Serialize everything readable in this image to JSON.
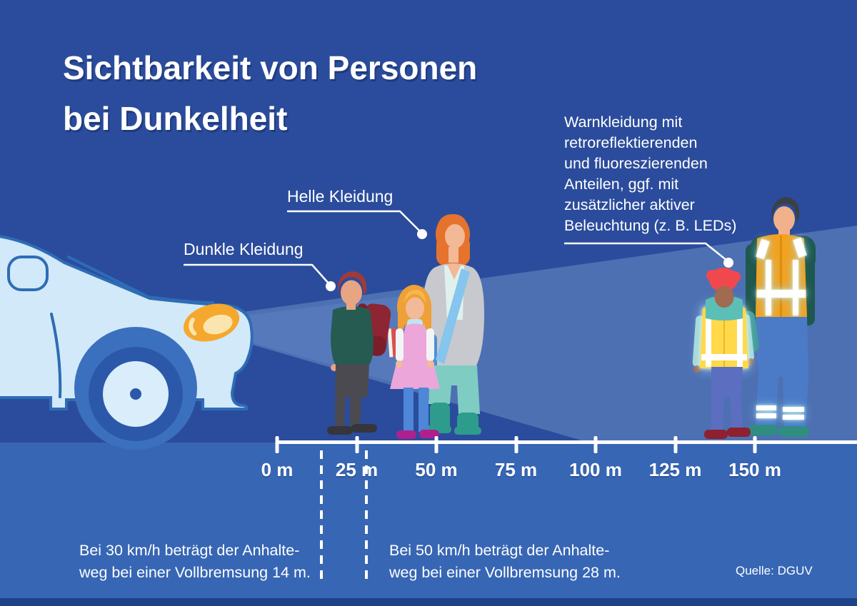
{
  "title": {
    "text": "Sichtbarkeit von Personen\nbei Dunkelheit"
  },
  "callouts": {
    "dark": {
      "label": "Dunkle Kleidung"
    },
    "light": {
      "label": "Helle  Kleidung"
    },
    "hivis": {
      "label": "Warnkleidung mit\nretroreflektierenden\nund fluoreszierenden\nAnteilen, ggf. mit\nzusätzlicher aktiver\nBeleuchtung (z. B. LEDs)"
    }
  },
  "scale": {
    "unit": "m",
    "tick_labels": [
      "0 m",
      "25 m",
      "50 m",
      "75 m",
      "100 m",
      "125 m",
      "150 m"
    ],
    "tick_values_m": [
      0,
      25,
      50,
      75,
      100,
      125,
      150
    ]
  },
  "markers": {
    "braking_30": {
      "text": "Bei 30 km/h beträgt der Anhalte-\nweg bei einer Vollbremsung 14 m.",
      "distance_m": 14
    },
    "braking_50": {
      "text": "Bei 50 km/h beträgt der Anhalte-\nweg bei einer Vollbremsung 28 m.",
      "distance_m": 28
    }
  },
  "figures": [
    {
      "name": "pedestrian-dark-clothing",
      "clothing": "Dunkle Kleidung",
      "position_m_approx": 25
    },
    {
      "name": "pedestrians-light-clothing",
      "clothing": "Helle Kleidung",
      "position_m_approx": 50
    },
    {
      "name": "pedestrians-warning-clothing",
      "clothing": "Warnkleidung mit retroreflektierenden und fluoreszierenden Anteilen",
      "position_m_approx": 150
    }
  ],
  "source": {
    "text": "Quelle: DGUV"
  },
  "colors": {
    "background": "#2B4C9C",
    "headlight_beam": "#4D70B3",
    "road": "#3766B4",
    "bottom_strip": "#1F4287",
    "text": "#FFFFFF",
    "headlight_orange": "#F5A82D",
    "hivis_yellow": "#FFD94A",
    "hivis_orange": "#F2A21F"
  }
}
